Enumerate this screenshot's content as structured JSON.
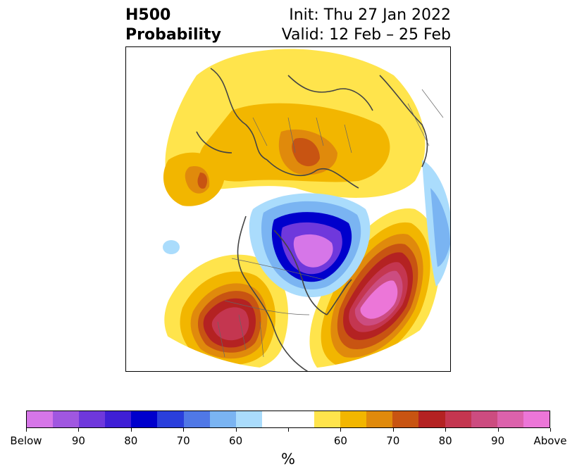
{
  "header": {
    "title_line1": "H500",
    "title_line2": "Probability",
    "init_text": "Init: Thu 27 Jan 2022",
    "valid_text": "Valid: 12 Feb – 25 Feb"
  },
  "colorbar": {
    "colors": [
      "#d676e8",
      "#a057e0",
      "#6f38dc",
      "#3f1fd6",
      "#0000cc",
      "#2a3fdc",
      "#5078e6",
      "#7ab4f2",
      "#aadcfc",
      "#ffffff",
      "#ffffff",
      "#ffe44c",
      "#f2b600",
      "#e08a0c",
      "#c85412",
      "#b42222",
      "#c43650",
      "#cc4c80",
      "#dc62ac",
      "#ec76d8"
    ],
    "labels": [
      "Below",
      "90",
      "80",
      "70",
      "60",
      "60",
      "70",
      "80",
      "90",
      "Above"
    ],
    "unit": "%"
  },
  "map": {
    "colors": {
      "below_strong": "#d676e8",
      "below_mid": "#6f38dc",
      "below_core": "#0000cc",
      "below_weak": "#7ab4f2",
      "below_faint": "#aadcfc",
      "above_faint": "#ffe44c",
      "above_low": "#f2b600",
      "above_mid": "#e08a0c",
      "above_high": "#c85412",
      "above_red": "#b42222",
      "above_rose": "#c43650",
      "above_pink": "#cc4c80",
      "above_magenta": "#ec76d8"
    }
  }
}
